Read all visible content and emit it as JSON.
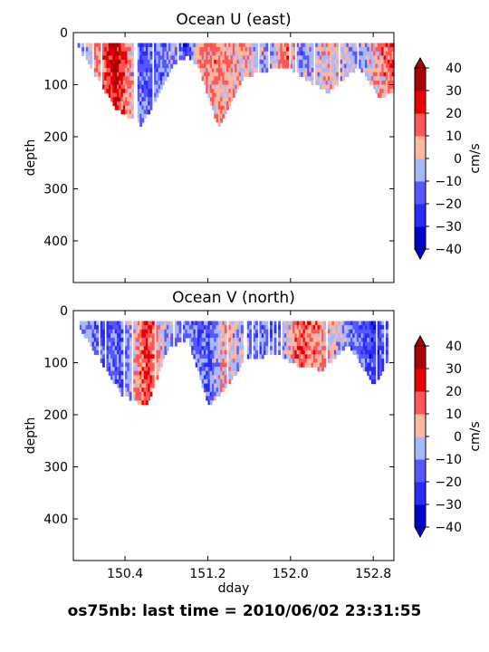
{
  "figure": {
    "suptitle": "os75nb: last time = 2010/06/02 23:31:55"
  },
  "chart_data": [
    {
      "type": "heatmap",
      "title": "Ocean U (east)",
      "xlabel": "",
      "ylabel": "depth",
      "xlim": [
        149.9,
        153.0
      ],
      "ylim": [
        480,
        0
      ],
      "yticks": [
        0,
        100,
        200,
        300,
        400
      ],
      "xticks": [
        150.4,
        151.2,
        152.0,
        152.8
      ],
      "show_xticklabels": false,
      "colorbar": {
        "label": "cm/s",
        "levels": [
          -40,
          -30,
          -20,
          -10,
          0,
          10,
          20,
          30,
          40
        ],
        "colors": [
          "#0000cc",
          "#2a2aff",
          "#5757ff",
          "#a6b8ff",
          "#ffb8a0",
          "#ff5757",
          "#e60000",
          "#aa0000"
        ],
        "extend": "both"
      },
      "series": [
        {
          "name": "profiles",
          "x": [
            149.92,
            150.3,
            150.55,
            150.85,
            151.0,
            151.1,
            151.3,
            151.55,
            151.75,
            151.95,
            152.1,
            152.35,
            152.65,
            152.85,
            153.0
          ],
          "y": [
            20,
            140,
            175,
            60,
            40,
            60,
            180,
            80,
            70,
            60,
            80,
            110,
            60,
            120,
            110
          ],
          "values": [
            -20,
            35,
            -20,
            -10,
            -25,
            10,
            10,
            5,
            -10,
            15,
            -10,
            5,
            -10,
            10,
            15
          ]
        }
      ]
    },
    {
      "type": "heatmap",
      "title": "Ocean V (north)",
      "xlabel": "dday",
      "ylabel": "depth",
      "xlim": [
        149.9,
        153.0
      ],
      "ylim": [
        480,
        0
      ],
      "yticks": [
        0,
        100,
        200,
        300,
        400
      ],
      "xticks": [
        150.4,
        151.2,
        152.0,
        152.8
      ],
      "xticklabels": [
        "150.4",
        "151.2",
        "152.0",
        "152.8"
      ],
      "show_xticklabels": true,
      "colorbar": {
        "label": "cm/s",
        "levels": [
          -40,
          -30,
          -20,
          -10,
          0,
          10,
          20,
          30,
          40
        ],
        "colors": [
          "#0000cc",
          "#2a2aff",
          "#5757ff",
          "#a6b8ff",
          "#ffb8a0",
          "#ff5757",
          "#e60000",
          "#aa0000"
        ],
        "extend": "both"
      },
      "series": [
        {
          "name": "profiles",
          "x": [
            149.92,
            150.35,
            150.6,
            150.8,
            151.0,
            151.2,
            151.35,
            151.55,
            151.85,
            152.05,
            152.3,
            152.55,
            152.8,
            152.95
          ],
          "y": [
            20,
            155,
            180,
            70,
            50,
            180,
            150,
            90,
            80,
            100,
            110,
            60,
            140,
            90
          ],
          "values": [
            -10,
            -20,
            25,
            -10,
            -10,
            -20,
            10,
            -10,
            -20,
            15,
            10,
            -10,
            -25,
            -15
          ]
        }
      ]
    }
  ]
}
